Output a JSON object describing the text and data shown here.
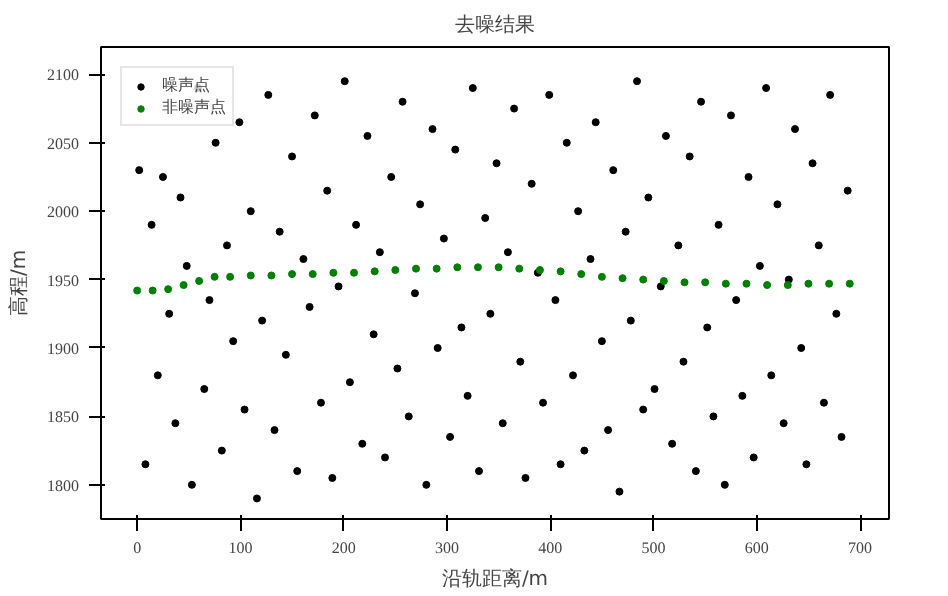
{
  "chart_data": {
    "type": "scatter",
    "title": "去噪结果",
    "xlabel": "沿轨距离/m",
    "ylabel": "高程/m",
    "xlim": [
      -35,
      728
    ],
    "ylim": [
      1775,
      2120
    ],
    "xticks": [
      0,
      100,
      200,
      300,
      400,
      500,
      600,
      700
    ],
    "yticks": [
      1800,
      1850,
      1900,
      1950,
      2000,
      2050,
      2100
    ],
    "grid": false,
    "legend": "top left",
    "marker": "circle",
    "series": [
      {
        "name": "噪声点",
        "color": "#000000",
        "x": [
          2,
          8,
          14,
          20,
          25,
          31,
          37,
          42,
          48,
          53,
          59,
          65,
          70,
          76,
          82,
          87,
          93,
          99,
          104,
          110,
          116,
          121,
          127,
          133,
          138,
          144,
          150,
          155,
          161,
          167,
          172,
          178,
          184,
          189,
          195,
          201,
          206,
          212,
          218,
          223,
          229,
          235,
          240,
          246,
          252,
          257,
          263,
          269,
          274,
          280,
          286,
          291,
          297,
          303,
          308,
          314,
          320,
          325,
          331,
          337,
          342,
          348,
          354,
          359,
          365,
          371,
          376,
          382,
          388,
          393,
          399,
          405,
          410,
          416,
          422,
          427,
          433,
          439,
          444,
          450,
          456,
          461,
          467,
          473,
          478,
          484,
          490,
          495,
          501,
          507,
          512,
          518,
          524,
          529,
          535,
          541,
          546,
          552,
          558,
          563,
          569,
          575,
          580,
          586,
          592,
          597,
          603,
          609,
          614,
          620,
          626,
          631,
          637,
          643,
          648,
          654,
          660,
          665,
          671,
          677,
          682,
          688
        ],
        "values": [
          2030,
          1815,
          1990,
          1880,
          2025,
          1925,
          1845,
          2010,
          1960,
          1800,
          2090,
          1870,
          1935,
          2050,
          1825,
          1975,
          1905,
          2065,
          1855,
          2000,
          1790,
          1920,
          2085,
          1840,
          1985,
          1895,
          2040,
          1810,
          1965,
          1930,
          2070,
          1860,
          2015,
          1805,
          1945,
          2095,
          1875,
          1990,
          1830,
          2055,
          1910,
          1970,
          1820,
          2025,
          1885,
          2080,
          1850,
          1940,
          2005,
          1800,
          2060,
          1900,
          1980,
          1835,
          2045,
          1915,
          1865,
          2090,
          1810,
          1995,
          1925,
          2035,
          1845,
          1970,
          2075,
          1890,
          1805,
          2020,
          1955,
          1860,
          2085,
          1935,
          1815,
          2050,
          1880,
          2000,
          1825,
          1965,
          2065,
          1905,
          1840,
          2030,
          1795,
          1985,
          1920,
          2095,
          1855,
          2010,
          1870,
          1945,
          2055,
          1830,
          1975,
          1890,
          2040,
          1810,
          2080,
          1915,
          1850,
          1990,
          1800,
          2070,
          1935,
          1865,
          2025,
          1820,
          1960,
          2090,
          1880,
          2005,
          1845,
          1950,
          2060,
          1900,
          1815,
          2035,
          1975,
          1860,
          2085,
          1925,
          1835,
          2015
        ]
      },
      {
        "name": "非噪声点",
        "color": "#008000",
        "x": [
          0,
          15,
          30,
          45,
          60,
          75,
          90,
          110,
          130,
          150,
          170,
          190,
          210,
          230,
          250,
          270,
          290,
          310,
          330,
          350,
          370,
          390,
          410,
          430,
          450,
          470,
          490,
          510,
          530,
          550,
          570,
          590,
          610,
          630,
          650,
          670,
          690
        ],
        "values": [
          1942,
          1942,
          1943,
          1946,
          1949,
          1952,
          1952,
          1953,
          1953,
          1954,
          1954,
          1955,
          1955,
          1956,
          1957,
          1958,
          1958,
          1959,
          1959,
          1959,
          1958,
          1957,
          1956,
          1954,
          1952,
          1951,
          1950,
          1949,
          1948,
          1948,
          1947,
          1947,
          1946,
          1946,
          1947,
          1947,
          1947
        ]
      }
    ]
  }
}
